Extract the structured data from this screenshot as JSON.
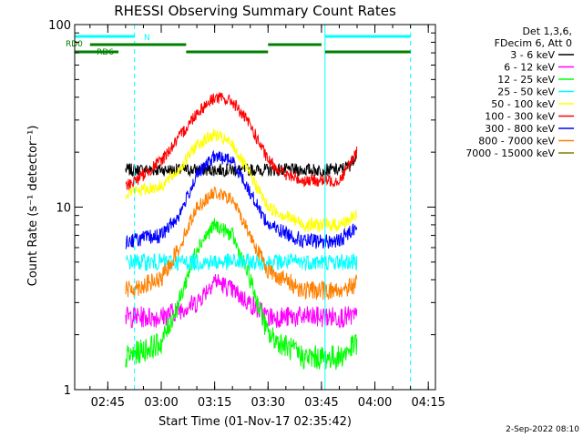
{
  "chart_data": {
    "type": "line",
    "title": "RHESSI Observing Summary Count Rates",
    "xlabel": "Start Time (01-Nov-17 02:35:42)",
    "ylabel": "Count Rate (s⁻¹ detector⁻¹)",
    "y_scale": "log",
    "ylim": [
      1,
      100
    ],
    "xlim": [
      "02:35:42",
      "04:17:00"
    ],
    "x_ticks": [
      "02:45",
      "03:00",
      "03:15",
      "03:30",
      "03:45",
      "04:00",
      "04:15"
    ],
    "y_ticks": [
      "1",
      "10",
      "100"
    ],
    "grid": false,
    "legend_position": "right",
    "legend_header": [
      "Det 1,3,6,",
      "FDecim 6, Att 0"
    ],
    "series": [
      {
        "name": "3 - 6 keV",
        "color": "#000000",
        "x": [
          "02:50",
          "03:00",
          "03:10",
          "03:15",
          "03:20",
          "03:30",
          "03:40",
          "03:50",
          "03:53",
          "03:55"
        ],
        "values": [
          16,
          16,
          16,
          16,
          16,
          16,
          16,
          16,
          17,
          20
        ]
      },
      {
        "name": "6 - 12 keV",
        "color": "#ff00ff",
        "x": [
          "02:50",
          "03:00",
          "03:10",
          "03:15",
          "03:20",
          "03:30",
          "03:40",
          "03:50",
          "03:55"
        ],
        "values": [
          2.5,
          2.5,
          3,
          4,
          3.5,
          2.5,
          2.5,
          2.5,
          2.5
        ]
      },
      {
        "name": "12 - 25 keV",
        "color": "#00ff00",
        "x": [
          "02:50",
          "03:00",
          "03:05",
          "03:10",
          "03:15",
          "03:20",
          "03:25",
          "03:30",
          "03:40",
          "03:50",
          "03:55"
        ],
        "values": [
          1.5,
          1.8,
          3,
          6,
          8,
          7,
          4,
          2,
          1.5,
          1.5,
          1.8
        ]
      },
      {
        "name": "25 - 50 keV",
        "color": "#00ffff",
        "x": [
          "02:50",
          "03:00",
          "03:10",
          "03:20",
          "03:30",
          "03:40",
          "03:50",
          "03:55"
        ],
        "values": [
          5,
          5,
          5,
          5,
          5,
          5,
          5,
          5
        ]
      },
      {
        "name": "50 - 100 keV",
        "color": "#ffff00",
        "x": [
          "02:50",
          "03:00",
          "03:05",
          "03:10",
          "03:15",
          "03:20",
          "03:25",
          "03:30",
          "03:40",
          "03:50",
          "03:55"
        ],
        "values": [
          12,
          13,
          16,
          22,
          25,
          22,
          15,
          10,
          8,
          8,
          9
        ]
      },
      {
        "name": "100 - 300 keV",
        "color": "#ff0000",
        "x": [
          "02:50",
          "02:55",
          "03:00",
          "03:05",
          "03:10",
          "03:15",
          "03:20",
          "03:25",
          "03:30",
          "03:35",
          "03:40",
          "03:50",
          "03:55"
        ],
        "values": [
          13,
          15,
          18,
          24,
          33,
          40,
          38,
          28,
          18,
          15,
          14,
          14,
          20
        ]
      },
      {
        "name": "300 - 800 keV",
        "color": "#0000ff",
        "x": [
          "02:50",
          "03:00",
          "03:05",
          "03:10",
          "03:15",
          "03:20",
          "03:25",
          "03:30",
          "03:40",
          "03:50",
          "03:55"
        ],
        "values": [
          6.5,
          7,
          9,
          15,
          19,
          18,
          12,
          8,
          6.5,
          6.5,
          8
        ]
      },
      {
        "name": "800 - 7000 keV",
        "color": "#ff8000",
        "x": [
          "02:50",
          "03:00",
          "03:05",
          "03:10",
          "03:15",
          "03:20",
          "03:25",
          "03:30",
          "03:40",
          "03:50",
          "03:55"
        ],
        "values": [
          3.5,
          4,
          6,
          10,
          12,
          11,
          7,
          4.5,
          3.5,
          3.5,
          3.8
        ]
      },
      {
        "name": "7000 - 15000 keV",
        "color": "#808000",
        "x": [],
        "values": []
      }
    ],
    "annotations": {
      "flag_bars": [
        {
          "label": "N",
          "color": "#00ffff",
          "segments": [
            [
              "02:35:42",
              "02:52:30"
            ],
            [
              "03:46:00",
              "04:10:00"
            ]
          ]
        },
        {
          "label": "RD0",
          "color": "#008000",
          "segments": [
            [
              "02:40:00",
              "03:07:00"
            ],
            [
              "03:30:00",
              "03:45:00"
            ]
          ]
        },
        {
          "label": "RD6",
          "color": "#008000",
          "segments": [
            [
              "02:35:42",
              "02:48:00"
            ],
            [
              "03:07:00",
              "03:30:00"
            ],
            [
              "03:46:00",
              "04:10:00"
            ]
          ]
        }
      ],
      "vertical_lines": [
        {
          "x": "02:35:42",
          "color": "#00ffff",
          "style": "solid"
        },
        {
          "x": "02:52:30",
          "color": "#00ffff",
          "style": "dashed"
        },
        {
          "x": "03:46:00",
          "color": "#00ffff",
          "style": "solid"
        },
        {
          "x": "04:10:00",
          "color": "#00ffff",
          "style": "dashed"
        }
      ]
    },
    "footer_timestamp": "2-Sep-2022 08:10"
  }
}
